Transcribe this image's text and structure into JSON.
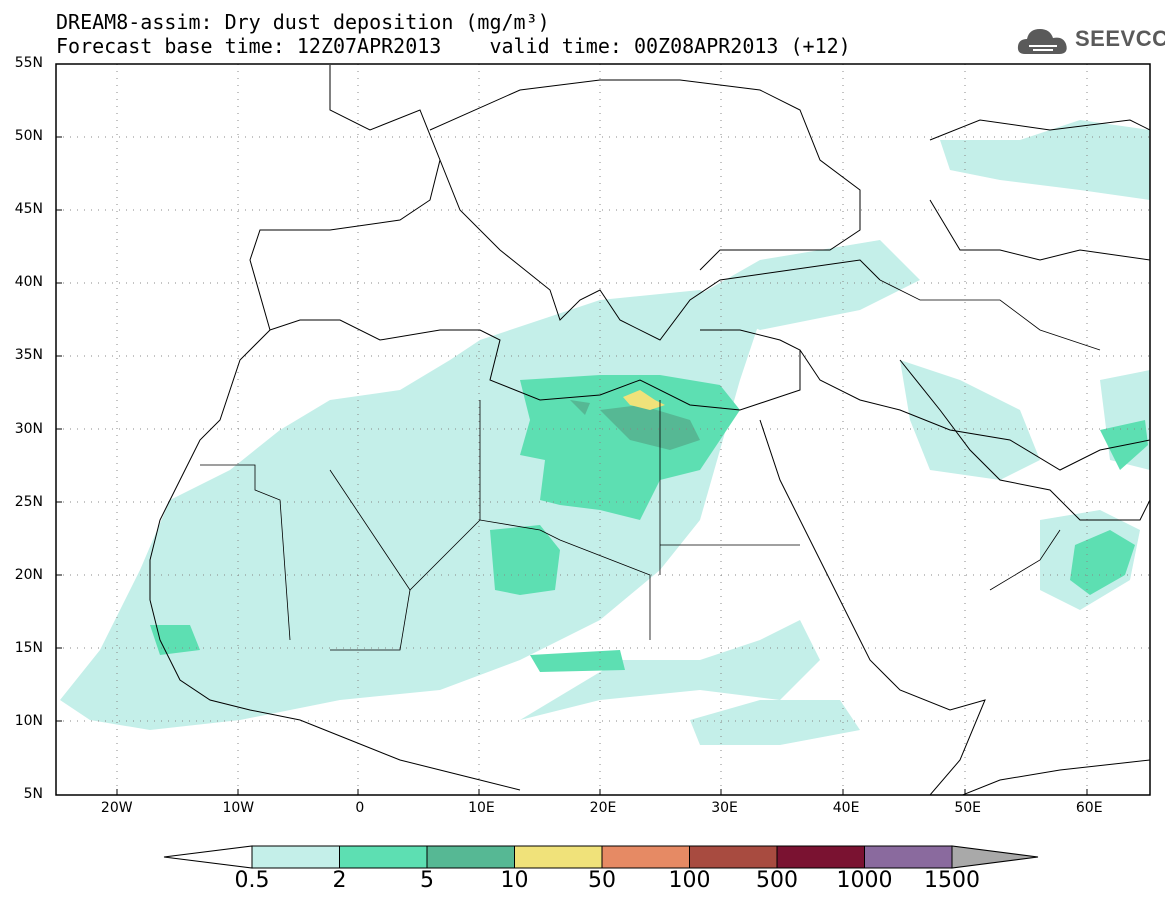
{
  "header": {
    "title_line1": "DREAM8-assim: Dry dust deposition (mg/m³)",
    "title_line2": "Forecast base time: 12Z07APR2013    valid time: 00Z08APR2013 (+12)"
  },
  "logo": {
    "text": "SEEVCCC",
    "icon": "cloud-icon"
  },
  "map": {
    "lat_labels": [
      {
        "text": "55N",
        "lat": 55
      },
      {
        "text": "50N",
        "lat": 50
      },
      {
        "text": "45N",
        "lat": 45
      },
      {
        "text": "40N",
        "lat": 40
      },
      {
        "text": "35N",
        "lat": 35
      },
      {
        "text": "30N",
        "lat": 30
      },
      {
        "text": "25N",
        "lat": 25
      },
      {
        "text": "20N",
        "lat": 20
      },
      {
        "text": "15N",
        "lat": 15
      },
      {
        "text": "10N",
        "lat": 10
      },
      {
        "text": "5N",
        "lat": 5
      }
    ],
    "lon_labels": [
      {
        "text": "20W",
        "lon": -20
      },
      {
        "text": "10W",
        "lon": -10
      },
      {
        "text": "0",
        "lon": 0
      },
      {
        "text": "10E",
        "lon": 10
      },
      {
        "text": "20E",
        "lon": 20
      },
      {
        "text": "30E",
        "lon": 30
      },
      {
        "text": "40E",
        "lon": 40
      },
      {
        "text": "50E",
        "lon": 50
      },
      {
        "text": "60E",
        "lon": 60
      }
    ],
    "lon_range": [
      -25,
      65
    ],
    "lat_range": [
      5,
      55
    ],
    "grid": "dotted"
  },
  "colorbar": {
    "ticks": [
      "0.5",
      "2",
      "5",
      "10",
      "50",
      "100",
      "500",
      "1000",
      "1500"
    ],
    "colors": [
      "#c4efe9",
      "#5ddfb2",
      "#56b894",
      "#f0e27a",
      "#e68a64",
      "#a84b40",
      "#7a1231",
      "#8a6a9e"
    ],
    "low_color": "#ffffff",
    "high_color": "#a9a9a9"
  }
}
